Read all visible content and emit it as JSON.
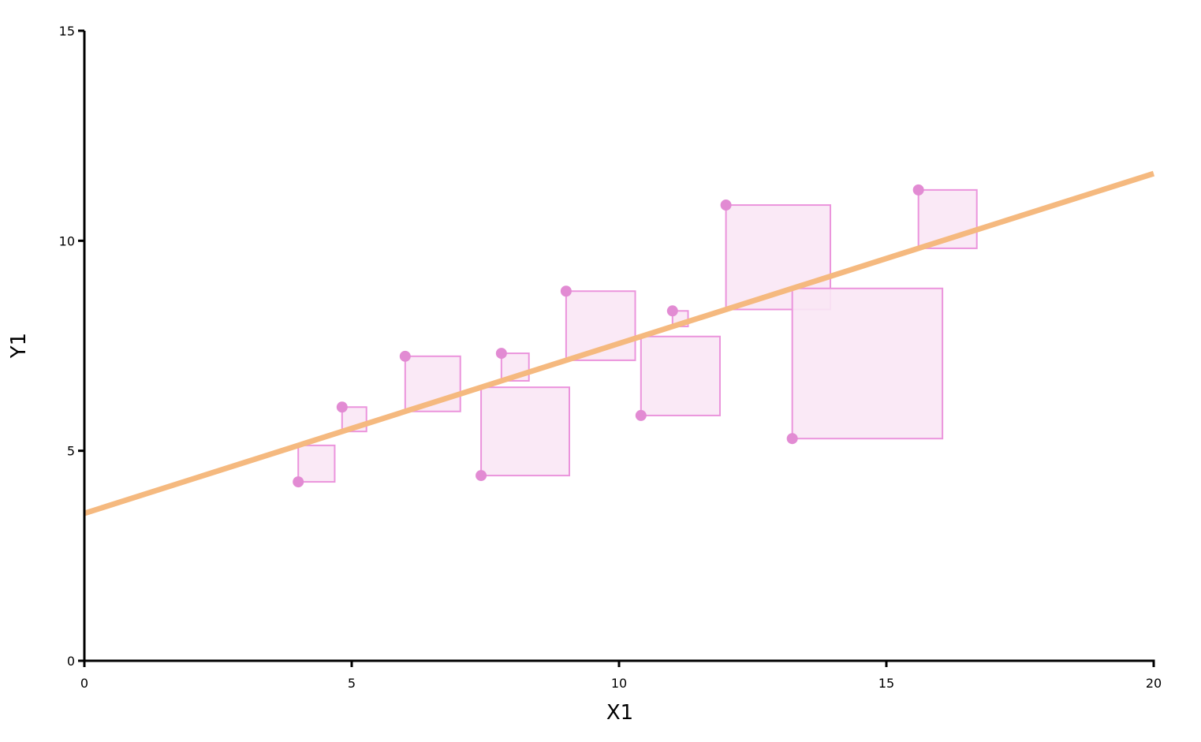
{
  "chart_data": {
    "type": "scatter",
    "x_label": "X1",
    "y_label": "Y1",
    "xlim": [
      0,
      20
    ],
    "ylim": [
      0,
      15
    ],
    "xticks": [
      0,
      5,
      10,
      15,
      20
    ],
    "yticks": [
      0,
      5,
      10,
      15
    ],
    "points": {
      "color": "#e28bd3",
      "x": [
        4.0,
        4.82,
        6.0,
        7.42,
        7.8,
        9.01,
        10.41,
        11.0,
        12.0,
        13.24,
        15.6
      ],
      "y": [
        4.26,
        6.04,
        7.25,
        4.41,
        7.32,
        8.8,
        5.84,
        8.33,
        10.85,
        5.29,
        11.21
      ]
    },
    "fit_line": {
      "color": "#f5b97f",
      "x": [
        0,
        20
      ],
      "y": [
        3.51,
        11.6
      ]
    },
    "square_fill": "#f9e7f5",
    "square_stroke": "#eb94dc"
  }
}
